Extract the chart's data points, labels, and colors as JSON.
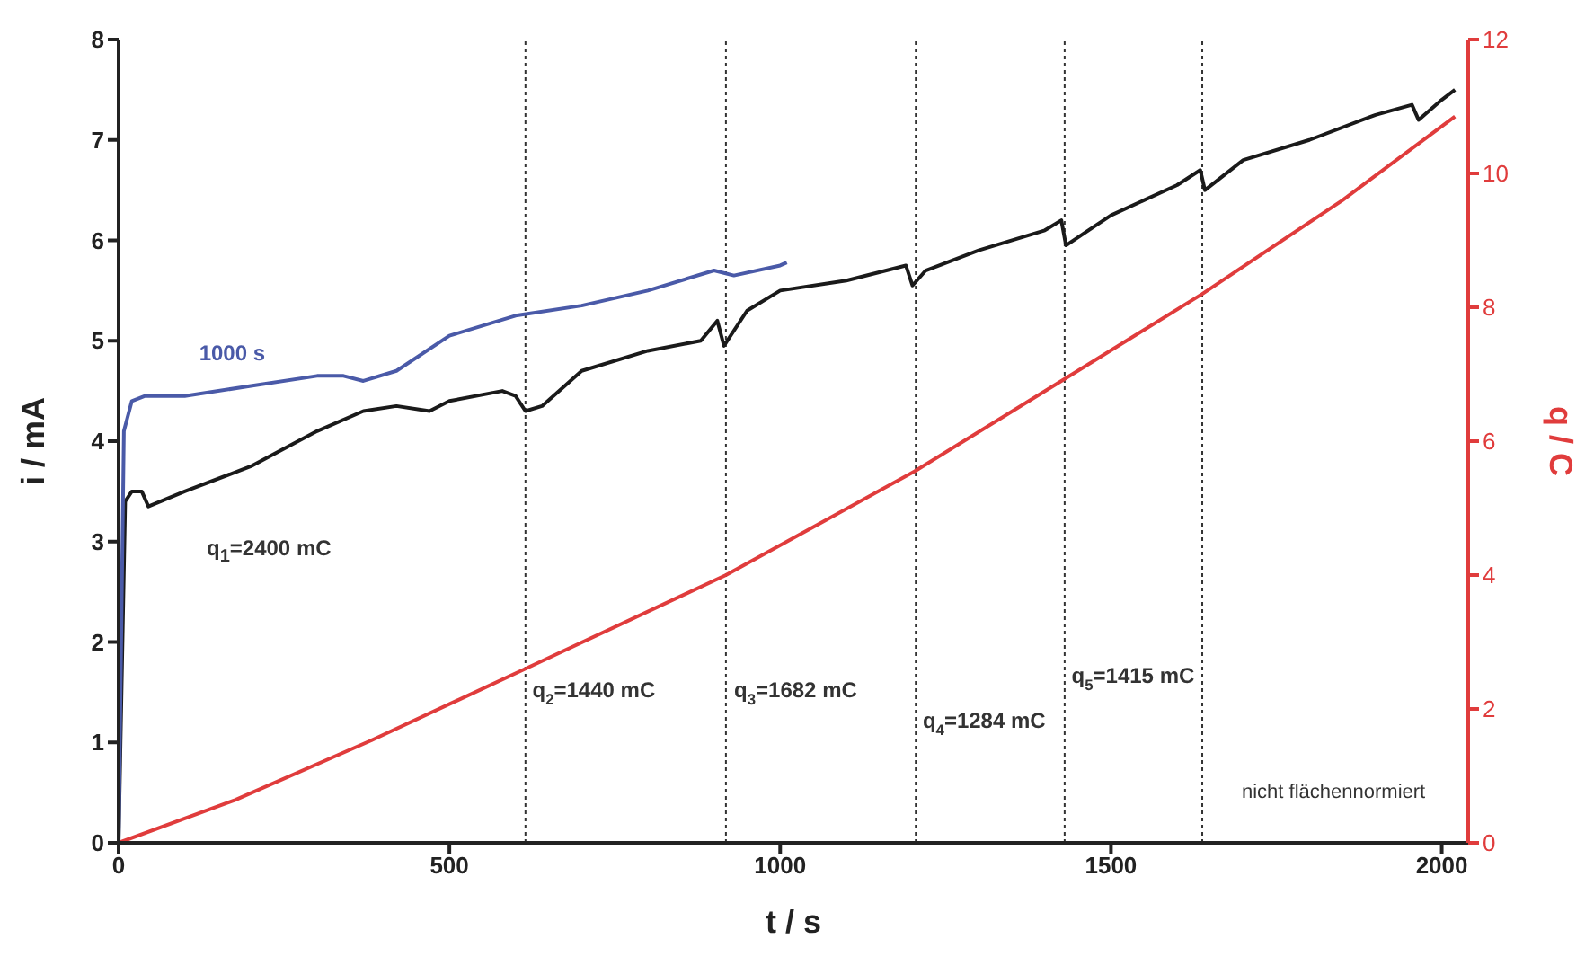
{
  "chart_data": {
    "type": "line",
    "xlabel": "t / s",
    "ylabel": "i / mA",
    "y2label": "q / C",
    "xlim": [
      0,
      2040
    ],
    "xticks": [
      0,
      500,
      1000,
      1500,
      2000
    ],
    "ylim": [
      0,
      8
    ],
    "yticks": [
      0,
      1,
      2,
      3,
      4,
      5,
      6,
      7,
      8
    ],
    "y2lim": [
      0,
      12
    ],
    "y2ticks": [
      0,
      2,
      4,
      6,
      8,
      10,
      12
    ],
    "marker": "none",
    "line_style": "solid",
    "series": [
      {
        "color": "#1a1a1a",
        "x": [
          0,
          10,
          20,
          35,
          45,
          100,
          200,
          300,
          370,
          420,
          470,
          500,
          580,
          600,
          615,
          640,
          700,
          800,
          880,
          905,
          915,
          950,
          1000,
          1100,
          1190,
          1200,
          1220,
          1300,
          1400,
          1425,
          1432,
          1500,
          1600,
          1635,
          1642,
          1700,
          1800,
          1900,
          1955,
          1965,
          2000,
          2020
        ],
        "values": [
          0,
          3.4,
          3.5,
          3.5,
          3.35,
          3.5,
          3.75,
          4.1,
          4.3,
          4.35,
          4.3,
          4.4,
          4.5,
          4.45,
          4.3,
          4.35,
          4.7,
          4.9,
          5.0,
          5.2,
          4.95,
          5.3,
          5.5,
          5.6,
          5.75,
          5.55,
          5.7,
          5.9,
          6.1,
          6.2,
          5.95,
          6.25,
          6.55,
          6.7,
          6.5,
          6.8,
          7.0,
          7.25,
          7.35,
          7.2,
          7.4,
          7.5
        ]
      },
      {
        "name": "1000 s",
        "color": "#4a5aa8",
        "x": [
          0,
          8,
          20,
          40,
          100,
          200,
          300,
          340,
          370,
          420,
          500,
          600,
          700,
          800,
          900,
          930,
          1000,
          1010
        ],
        "values": [
          0,
          4.1,
          4.4,
          4.45,
          4.45,
          4.55,
          4.65,
          4.65,
          4.6,
          4.7,
          5.05,
          5.25,
          5.35,
          5.5,
          5.7,
          5.65,
          5.75,
          5.78
        ]
      },
      {
        "color": "#e03c3c",
        "axis": "y2",
        "x": [
          0,
          176,
          382,
          615,
          918,
          1205,
          1430,
          1638,
          1850,
          2020
        ],
        "values": [
          0,
          0.64,
          1.53,
          2.6,
          4.0,
          5.56,
          6.93,
          8.2,
          9.6,
          10.85
        ]
      }
    ],
    "ref_lines": [
      {
        "axis": "x",
        "value": 615,
        "color": "#333333",
        "line_style": "dotted"
      },
      {
        "axis": "x",
        "value": 918,
        "color": "#333333",
        "line_style": "dotted"
      },
      {
        "axis": "x",
        "value": 1205,
        "color": "#333333",
        "line_style": "dotted"
      },
      {
        "axis": "x",
        "value": 1430,
        "color": "#333333",
        "line_style": "dotted"
      },
      {
        "axis": "x",
        "value": 1638,
        "color": "#333333",
        "line_style": "dotted"
      }
    ],
    "annotations": [
      "q$_{1}$=2400 mC",
      {
        "text": "q$_{2}$=1440 mC",
        "x": 620,
        "y": 1.5
      },
      {
        "text": "q$_{3}$=1682 mC",
        "x": 925,
        "y": 1.5
      },
      {
        "text": "q$_{4}$=1284 mC",
        "x": 1210,
        "y": 1.2
      },
      {
        "text": "q$_{5}$=1415 mC",
        "x": 1435,
        "y": 1.65
      },
      "nicht flächennormiert"
    ]
  }
}
